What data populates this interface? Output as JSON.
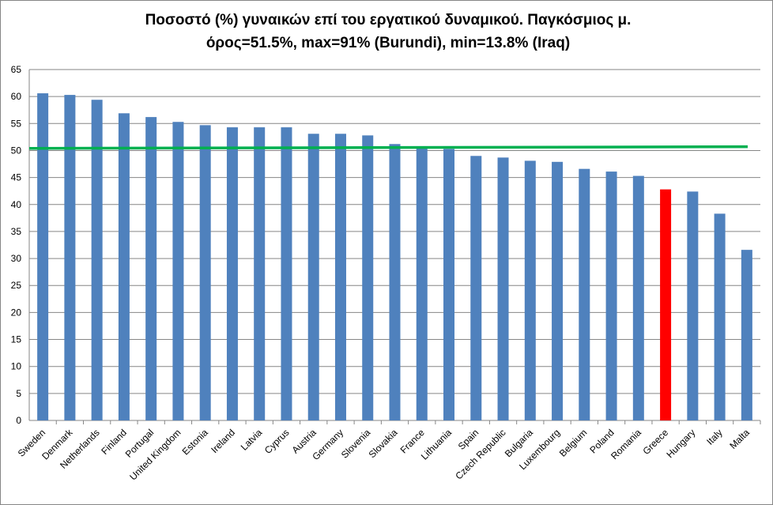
{
  "chart_data": {
    "type": "bar",
    "title_line1": "Ποσοστό (%) γυναικών επί του εργατικού δυναμικού. Παγκόσμιος μ.",
    "title_line2": "όρος=51.5%, max=91% (Burundi), min=13.8% (Iraq)",
    "xlabel": "",
    "ylabel": "",
    "ylim": [
      0,
      65
    ],
    "yticks": [
      0,
      5,
      10,
      15,
      20,
      25,
      30,
      35,
      40,
      45,
      50,
      55,
      60,
      65
    ],
    "grid": true,
    "legend": "none",
    "categories": [
      "Sweden",
      "Denmark",
      "Netherlands",
      "Finland",
      "Portugal",
      "United Kingdom",
      "Estonia",
      "Ireland",
      "Latvia",
      "Cyprus",
      "Austria",
      "Germany",
      "Slovenia",
      "Slovakia",
      "France",
      "Lithuania",
      "Spain",
      "Czech Republic",
      "Bulgaria",
      "Luxembourg",
      "Belgium",
      "Poland",
      "Romania",
      "Greece",
      "Hungary",
      "Italy",
      "Malta"
    ],
    "values": [
      60.6,
      60.3,
      59.4,
      56.9,
      56.2,
      55.3,
      54.7,
      54.3,
      54.3,
      54.3,
      53.1,
      53.1,
      52.8,
      51.2,
      50.7,
      50.3,
      49.0,
      48.7,
      48.1,
      47.9,
      46.6,
      46.1,
      45.3,
      42.8,
      42.4,
      38.3,
      31.6
    ],
    "highlight_category": "Greece",
    "colors": {
      "bar": "#4f81bd",
      "highlight": "#ff0000",
      "reference_line": "#00b050",
      "grid": "#868686"
    },
    "reference_line": {
      "y_start": 50.4,
      "y_end": 50.7
    }
  }
}
